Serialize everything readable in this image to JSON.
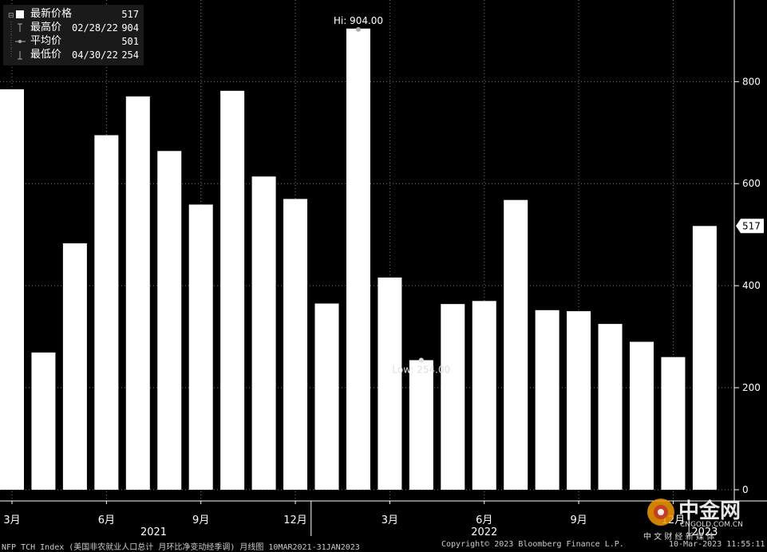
{
  "legend": {
    "items": [
      {
        "label": "最新价格",
        "date": "",
        "value": "517"
      },
      {
        "label": "最高价",
        "date": "02/28/22",
        "value": "904"
      },
      {
        "label": "平均价",
        "date": "",
        "value": "501"
      },
      {
        "label": "最低价",
        "date": "04/30/22",
        "value": "254"
      }
    ]
  },
  "annotations": {
    "high": "Hi: 904.00",
    "low": "Low: 254.00",
    "last": "517"
  },
  "chart_data": {
    "type": "bar",
    "categories": [
      "2021-03",
      "2021-04",
      "2021-05",
      "2021-06",
      "2021-07",
      "2021-08",
      "2021-09",
      "2021-10",
      "2021-11",
      "2021-12",
      "2022-01",
      "2022-02",
      "2022-03",
      "2022-04",
      "2022-05",
      "2022-06",
      "2022-07",
      "2022-08",
      "2022-09",
      "2022-10",
      "2022-11",
      "2022-12",
      "2023-01"
    ],
    "values": [
      785,
      269,
      483,
      695,
      771,
      664,
      559,
      782,
      614,
      570,
      365,
      904,
      416,
      254,
      364,
      370,
      568,
      352,
      350,
      325,
      290,
      260,
      517
    ],
    "ylim": [
      -22,
      960
    ],
    "yticks": [
      0,
      200,
      400,
      600,
      800
    ],
    "grid": true,
    "x_ticks": [
      {
        "label": "3月",
        "index": 0
      },
      {
        "label": "6月",
        "index": 3
      },
      {
        "label": "9月",
        "index": 6
      },
      {
        "label": "12月",
        "index": 9
      },
      {
        "label": "3月",
        "index": 12
      },
      {
        "label": "6月",
        "index": 15
      },
      {
        "label": "9月",
        "index": 18
      },
      {
        "label": "12月",
        "index": 21
      }
    ],
    "years": [
      {
        "label": "2021",
        "index": 4.5
      },
      {
        "label": "2022",
        "index": 15
      },
      {
        "label": "2023",
        "index": 22
      }
    ],
    "year_separators": [
      9.5,
      21.5
    ]
  },
  "footer": {
    "left": "NFP TCH Index (美国非农就业人口总计 月环比净变动经季调)  月线图 10MAR2021-31JAN2023",
    "center": "Copyright© 2023 Bloomberg Finance L.P.",
    "right": "10-Mar-2023 11:55:11"
  },
  "watermark": {
    "brand": "中金网",
    "url": "CNGOLD.COM.CN",
    "tagline": "中 文 财 经 新 媒 体"
  },
  "colors": {
    "bar": "#ffffff",
    "grid": "#777777",
    "background": "#000000"
  }
}
